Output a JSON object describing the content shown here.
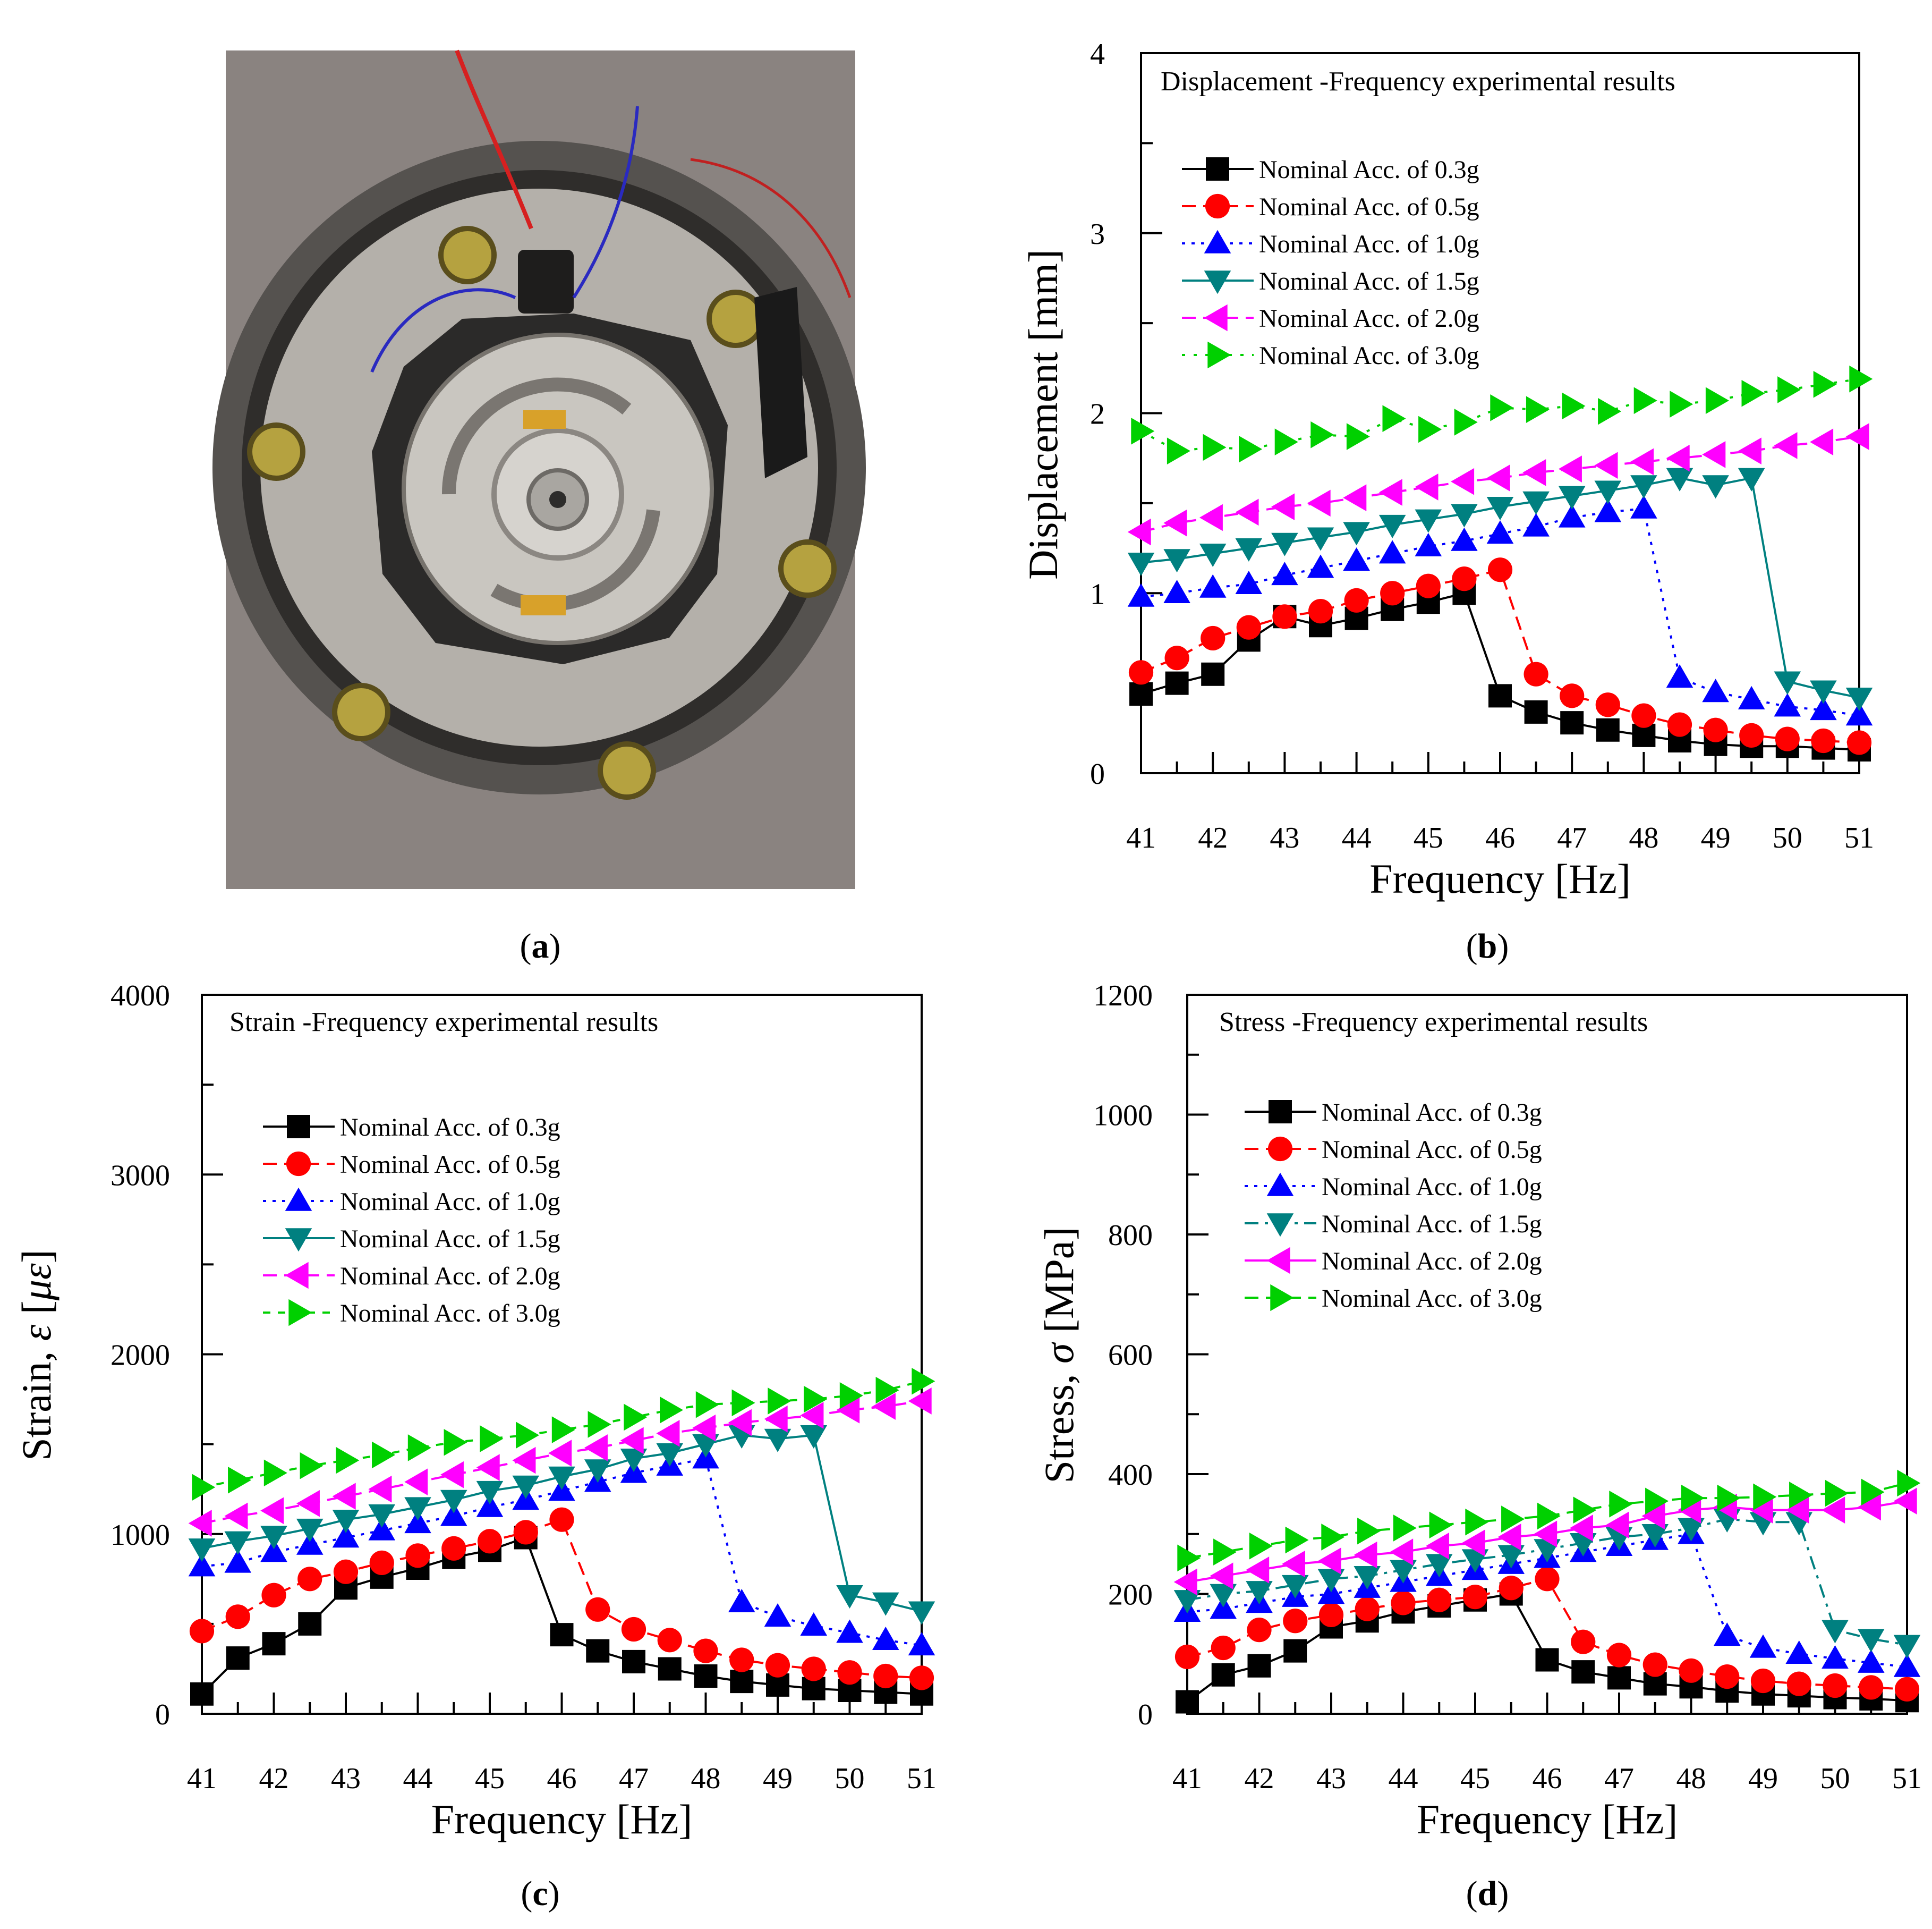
{
  "photo": {
    "description_label": "(a)",
    "caption_letter": "a"
  },
  "captions": {
    "a": "a",
    "b": "b",
    "c": "c",
    "d": "d"
  },
  "colors": {
    "s03": "#000000",
    "s05": "#ff0000",
    "s10": "#0000ff",
    "s15": "#008080",
    "s20": "#ff00ff",
    "s30": "#00d000"
  },
  "chart_data": [
    {
      "id": "b",
      "type": "line",
      "title": "Displacement -Frequency experimental results",
      "xlabel": "Frequency [Hz]",
      "ylabel": "Displacement [mm]",
      "xlim": [
        41,
        51
      ],
      "ylim": [
        0,
        4
      ],
      "xticks": [
        41,
        42,
        43,
        44,
        45,
        46,
        47,
        48,
        49,
        50,
        51
      ],
      "yticks": [
        0,
        1,
        2,
        3,
        4
      ],
      "legend": [
        "Nominal Acc. of 0.3g",
        "Nominal Acc. of 0.5g",
        "Nominal Acc. of 1.0g",
        "Nominal Acc. of 1.5g",
        "Nominal Acc. of 2.0g",
        "Nominal Acc. of 3.0g"
      ],
      "x": [
        41,
        41.5,
        42,
        42.5,
        43,
        43.5,
        44,
        44.5,
        45,
        45.5,
        46,
        46.5,
        47,
        47.5,
        48,
        48.5,
        49,
        49.5,
        50,
        50.5,
        51
      ],
      "series": [
        {
          "name": "Nominal Acc. of 0.3g",
          "values": [
            0.44,
            0.5,
            0.55,
            0.74,
            0.87,
            0.82,
            0.86,
            0.91,
            0.95,
            1.0,
            0.43,
            0.34,
            0.28,
            0.24,
            0.21,
            0.18,
            0.16,
            0.15,
            0.15,
            0.14,
            0.13
          ]
        },
        {
          "name": "Nominal Acc. of 0.5g",
          "values": [
            0.56,
            0.64,
            0.75,
            0.81,
            0.87,
            0.9,
            0.96,
            1.0,
            1.04,
            1.08,
            1.13,
            0.55,
            0.43,
            0.38,
            0.32,
            0.27,
            0.24,
            0.21,
            0.19,
            0.18,
            0.17
          ]
        },
        {
          "name": "Nominal Acc. of 1.0g",
          "values": [
            0.98,
            1.0,
            1.03,
            1.05,
            1.1,
            1.14,
            1.18,
            1.22,
            1.26,
            1.29,
            1.33,
            1.37,
            1.42,
            1.45,
            1.47,
            0.53,
            0.45,
            0.41,
            0.37,
            0.35,
            0.32
          ]
        },
        {
          "name": "Nominal Acc. of 1.5g",
          "values": [
            1.17,
            1.19,
            1.22,
            1.25,
            1.28,
            1.31,
            1.34,
            1.38,
            1.41,
            1.44,
            1.48,
            1.51,
            1.54,
            1.57,
            1.6,
            1.64,
            1.6,
            1.64,
            0.51,
            0.46,
            0.42
          ]
        },
        {
          "name": "Nominal Acc. of 2.0g",
          "values": [
            1.34,
            1.39,
            1.42,
            1.45,
            1.48,
            1.5,
            1.53,
            1.56,
            1.59,
            1.62,
            1.64,
            1.67,
            1.69,
            1.71,
            1.73,
            1.75,
            1.77,
            1.79,
            1.82,
            1.84,
            1.87
          ]
        },
        {
          "name": "Nominal Acc. of 3.0g",
          "values": [
            1.9,
            1.79,
            1.81,
            1.8,
            1.84,
            1.88,
            1.87,
            1.97,
            1.91,
            1.95,
            2.03,
            2.02,
            2.04,
            2.01,
            2.07,
            2.05,
            2.07,
            2.11,
            2.13,
            2.16,
            2.19
          ]
        }
      ]
    },
    {
      "id": "c",
      "type": "line",
      "title": "Strain -Frequency experimental results",
      "xlabel": "Frequency [Hz]",
      "ylabel_prefix": "Strain, ",
      "ylabel_symbol": "ε",
      "ylabel_unit_open": " [",
      "ylabel_unit": "με",
      "ylabel_unit_close": "]",
      "xlim": [
        41,
        51
      ],
      "ylim": [
        0,
        4000
      ],
      "xticks": [
        41,
        42,
        43,
        44,
        45,
        46,
        47,
        48,
        49,
        50,
        51
      ],
      "yticks": [
        0,
        1000,
        2000,
        3000,
        4000
      ],
      "legend": [
        "Nominal Acc. of 0.3g",
        "Nominal Acc. of 0.5g",
        "Nominal Acc. of 1.0g",
        "Nominal Acc. of 1.5g",
        "Nominal Acc. of 2.0g",
        "Nominal Acc. of 3.0g"
      ],
      "x": [
        41,
        41.5,
        42,
        42.5,
        43,
        43.5,
        44,
        44.5,
        45,
        45.5,
        46,
        46.5,
        47,
        47.5,
        48,
        48.5,
        49,
        49.5,
        50,
        50.5,
        51
      ],
      "series": [
        {
          "name": "Nominal Acc. of 0.3g",
          "values": [
            110,
            310,
            390,
            500,
            700,
            760,
            810,
            870,
            910,
            980,
            440,
            350,
            290,
            250,
            210,
            180,
            160,
            140,
            130,
            120,
            110
          ]
        },
        {
          "name": "Nominal Acc. of 0.5g",
          "values": [
            460,
            540,
            660,
            750,
            790,
            840,
            880,
            920,
            960,
            1010,
            1080,
            580,
            470,
            410,
            350,
            300,
            270,
            250,
            230,
            210,
            200
          ]
        },
        {
          "name": "Nominal Acc. of 1.0g",
          "values": [
            820,
            840,
            900,
            940,
            980,
            1020,
            1060,
            1100,
            1150,
            1190,
            1240,
            1290,
            1340,
            1380,
            1420,
            620,
            540,
            490,
            450,
            410,
            380
          ]
        },
        {
          "name": "Nominal Acc. of 1.5g",
          "values": [
            920,
            960,
            990,
            1030,
            1080,
            1110,
            1150,
            1190,
            1240,
            1270,
            1320,
            1360,
            1420,
            1450,
            1500,
            1550,
            1530,
            1550,
            660,
            620,
            570
          ]
        },
        {
          "name": "Nominal Acc. of 2.0g",
          "values": [
            1060,
            1100,
            1130,
            1170,
            1210,
            1250,
            1290,
            1330,
            1370,
            1410,
            1450,
            1480,
            1520,
            1560,
            1590,
            1620,
            1640,
            1660,
            1690,
            1710,
            1740
          ]
        },
        {
          "name": "Nominal Acc. of 3.0g",
          "values": [
            1260,
            1300,
            1340,
            1380,
            1410,
            1440,
            1480,
            1510,
            1530,
            1550,
            1580,
            1610,
            1650,
            1690,
            1720,
            1730,
            1740,
            1750,
            1770,
            1800,
            1850
          ]
        }
      ]
    },
    {
      "id": "d",
      "type": "line",
      "title": "Stress -Frequency experimental results",
      "xlabel": "Frequency [Hz]",
      "ylabel_prefix": "Stress, ",
      "ylabel_symbol": "σ",
      "ylabel_unit": " [MPa]",
      "xlim": [
        41,
        51
      ],
      "ylim": [
        0,
        1200
      ],
      "xticks": [
        41,
        42,
        43,
        44,
        45,
        46,
        47,
        48,
        49,
        50,
        51
      ],
      "yticks": [
        0,
        200,
        400,
        600,
        800,
        1000,
        1200
      ],
      "legend": [
        "Nominal Acc. of 0.3g",
        "Nominal Acc. of 0.5g",
        "Nominal Acc. of 1.0g",
        "Nominal Acc. of 1.5g",
        "Nominal Acc. of 2.0g",
        "Nominal Acc. of 3.0g"
      ],
      "x": [
        41,
        41.5,
        42,
        42.5,
        43,
        43.5,
        44,
        44.5,
        45,
        45.5,
        46,
        46.5,
        47,
        47.5,
        48,
        48.5,
        49,
        49.5,
        50,
        50.5,
        51
      ],
      "series": [
        {
          "name": "Nominal Acc. of 0.3g",
          "values": [
            20,
            65,
            80,
            105,
            145,
            155,
            170,
            180,
            190,
            200,
            90,
            70,
            60,
            50,
            45,
            38,
            33,
            30,
            27,
            25,
            22
          ]
        },
        {
          "name": "Nominal Acc. of 0.5g",
          "values": [
            95,
            110,
            140,
            155,
            165,
            175,
            185,
            190,
            195,
            210,
            225,
            120,
            98,
            82,
            72,
            62,
            55,
            50,
            47,
            44,
            41
          ]
        },
        {
          "name": "Nominal Acc. of 1.0g",
          "values": [
            170,
            175,
            185,
            195,
            200,
            210,
            220,
            230,
            240,
            250,
            260,
            270,
            280,
            290,
            300,
            130,
            110,
            100,
            92,
            85,
            78
          ]
        },
        {
          "name": "Nominal Acc. of 1.5g",
          "values": [
            190,
            200,
            205,
            215,
            225,
            230,
            240,
            250,
            258,
            265,
            275,
            285,
            295,
            300,
            310,
            325,
            320,
            320,
            140,
            125,
            115
          ]
        },
        {
          "name": "Nominal Acc. of 2.0g",
          "values": [
            220,
            230,
            240,
            250,
            255,
            265,
            270,
            280,
            285,
            295,
            300,
            310,
            315,
            330,
            340,
            345,
            340,
            340,
            340,
            345,
            355
          ]
        },
        {
          "name": "Nominal Acc. of 3.0g",
          "values": [
            260,
            270,
            280,
            290,
            295,
            305,
            310,
            315,
            320,
            325,
            330,
            340,
            350,
            355,
            360,
            360,
            362,
            365,
            368,
            370,
            385
          ]
        }
      ]
    }
  ]
}
